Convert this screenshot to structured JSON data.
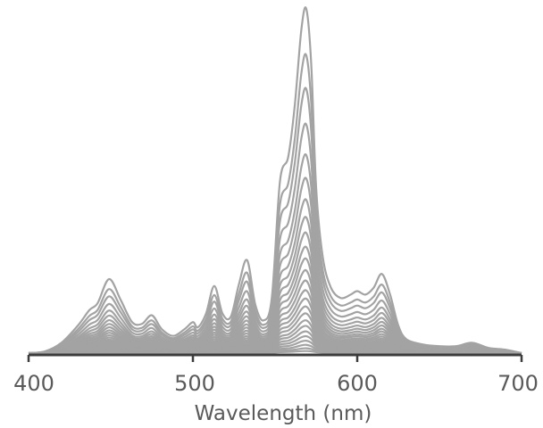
{
  "chart_data": {
    "type": "line",
    "title": "",
    "xlabel": "Wavelength (nm)",
    "ylabel": "",
    "xlim": [
      400,
      700
    ],
    "ylim": [
      0,
      1
    ],
    "x_ticks": [
      400,
      500,
      600,
      700
    ],
    "x_tick_labels": [
      "400",
      "500",
      "600",
      "700"
    ],
    "y_axis_visible": false,
    "grid": false,
    "legend": "none",
    "line_color": "#a3a3a3",
    "axis_color": "#3c3c3c",
    "curve_shape": {
      "x": [
        400,
        410,
        420,
        430,
        437,
        442,
        449,
        456,
        463,
        469,
        475,
        481,
        488,
        495,
        500,
        503,
        508,
        513,
        518,
        523,
        528,
        533,
        538,
        543,
        548,
        553,
        558,
        562,
        566,
        569,
        572,
        575,
        579,
        584,
        590,
        596,
        600,
        605,
        610,
        615,
        620,
        625,
        630,
        640,
        650,
        660,
        670,
        680,
        690,
        700
      ],
      "y": [
        0.0,
        0.005,
        0.03,
        0.08,
        0.125,
        0.145,
        0.215,
        0.155,
        0.09,
        0.085,
        0.11,
        0.07,
        0.05,
        0.07,
        0.09,
        0.075,
        0.115,
        0.195,
        0.115,
        0.105,
        0.2,
        0.27,
        0.14,
        0.095,
        0.16,
        0.5,
        0.57,
        0.72,
        0.94,
        1.0,
        0.84,
        0.48,
        0.28,
        0.19,
        0.16,
        0.17,
        0.18,
        0.17,
        0.19,
        0.23,
        0.17,
        0.08,
        0.04,
        0.025,
        0.02,
        0.02,
        0.03,
        0.015,
        0.01,
        0.0
      ]
    },
    "series_scales": [
      1.0,
      0.865,
      0.767,
      0.664,
      0.575,
      0.507,
      0.445,
      0.394,
      0.349,
      0.308,
      0.274,
      0.24,
      0.21,
      0.182,
      0.158,
      0.135,
      0.115,
      0.095,
      0.079,
      0.063,
      0.049,
      0.036,
      0.024,
      0.014,
      0.006
    ]
  }
}
